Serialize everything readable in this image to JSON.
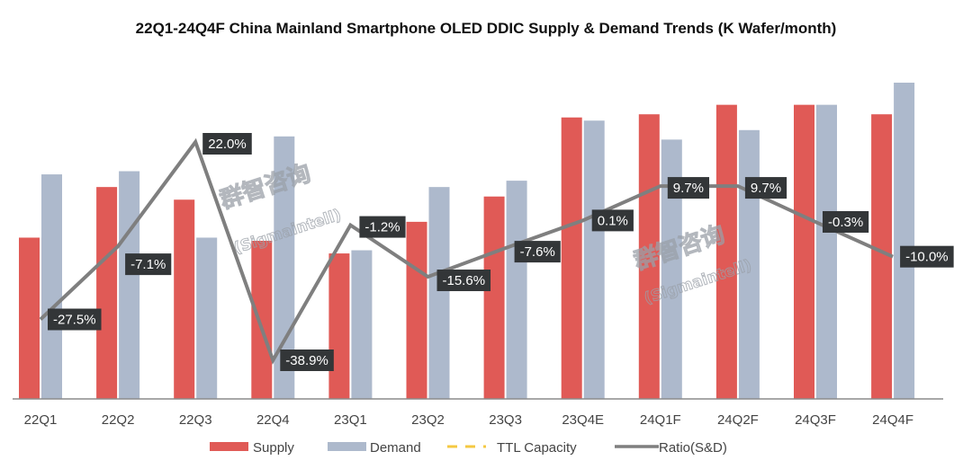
{
  "chart_data": {
    "type": "bar",
    "title": "22Q1-24Q4F China Mainland Smartphone OLED DDIC Supply & Demand Trends (K Wafer/month)",
    "xlabel": "",
    "ylabel": "",
    "y_axis_visible": false,
    "grid": false,
    "legend_position": "bottom",
    "categories": [
      "22Q1",
      "22Q2",
      "22Q3",
      "22Q4",
      "23Q1",
      "23Q2",
      "23Q3",
      "23Q4E",
      "24Q1F",
      "24Q2F",
      "24Q3F",
      "24Q4F"
    ],
    "value_units": "relative (no axis scale shown; tallest bar = 100)",
    "ylim": [
      0,
      100
    ],
    "series": [
      {
        "name": "Supply",
        "type": "bar",
        "color": "#e05a56",
        "values": [
          51,
          67,
          63,
          50,
          46,
          56,
          64,
          89,
          90,
          93,
          93,
          90
        ]
      },
      {
        "name": "Demand",
        "type": "bar",
        "color": "#adb9cc",
        "values": [
          71,
          72,
          51,
          83,
          47,
          67,
          69,
          88,
          82,
          85,
          93,
          100
        ]
      },
      {
        "name": "TTL Capacity",
        "type": "line",
        "style": "dashed",
        "color": "#f5c842",
        "values": []
      },
      {
        "name": "Ratio(S&D)",
        "type": "line",
        "color": "#7f7f7f",
        "values": [
          -27.5,
          -7.1,
          22.0,
          -38.9,
          -1.2,
          -15.6,
          -7.6,
          0.1,
          9.7,
          9.7,
          -0.3,
          -10.0
        ],
        "labels": [
          "-27.5%",
          "-7.1%",
          "22.0%",
          "-38.9%",
          "-1.2%",
          "-15.6%",
          "-7.6%",
          "0.1%",
          "9.7%",
          "9.7%",
          "-0.3%",
          "-10.0%"
        ],
        "label_style": {
          "background": "#333638",
          "color": "#ffffff"
        }
      }
    ],
    "legend": [
      "Supply",
      "Demand",
      "TTL Capacity",
      "Ratio(S&D)"
    ],
    "watermark": {
      "text_cn": "群智咨询",
      "text_en": "(Sigmaintell)"
    }
  }
}
